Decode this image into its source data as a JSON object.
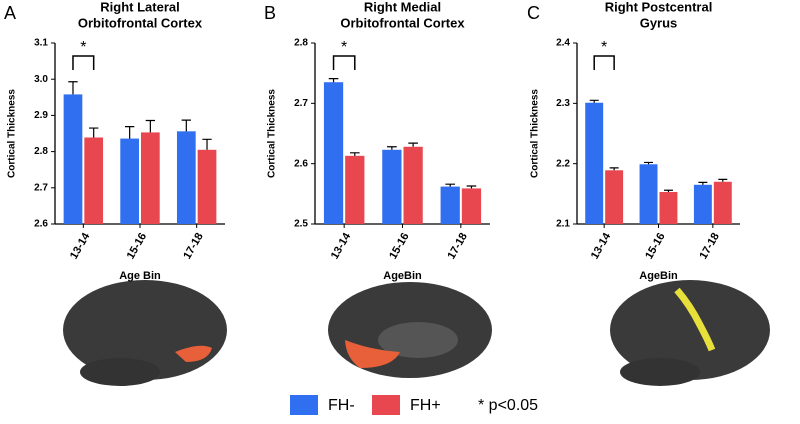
{
  "chart_data": [
    {
      "type": "bar",
      "panel": "A",
      "title": [
        "Right Lateral",
        "Orbitofrontal Cortex"
      ],
      "y_label": "Cortical Thickness",
      "x_label": "Age Bin",
      "categories": [
        "13-14",
        "15-16",
        "17-18"
      ],
      "series": [
        {
          "name": "FH-",
          "color": "#2f6ff0",
          "values": [
            2.958,
            2.836,
            2.856
          ],
          "errors": [
            0.035,
            0.033,
            0.031
          ]
        },
        {
          "name": "FH+",
          "color": "#e8474f",
          "values": [
            2.839,
            2.853,
            2.805
          ],
          "errors": [
            0.026,
            0.033,
            0.029
          ]
        }
      ],
      "ylim": [
        2.6,
        3.1
      ],
      "yticks": [
        2.6,
        2.7,
        2.8,
        2.9,
        {
          "value": 3,
          "label": "3.0"
        },
        3.1
      ],
      "annotation": "*"
    },
    {
      "type": "bar",
      "panel": "B",
      "title": [
        "Right Medial",
        "Orbitofrontal Cortex"
      ],
      "y_label": "Cortical Thickness",
      "x_label": "AgeBin",
      "categories": [
        "13-14",
        "15-16",
        "17-18"
      ],
      "series": [
        {
          "name": "FH-",
          "color": "#2f6ff0",
          "values": [
            2.735,
            2.623,
            2.562
          ],
          "errors": [
            0.006,
            0.005,
            0.004
          ]
        },
        {
          "name": "FH+",
          "color": "#e8474f",
          "values": [
            2.613,
            2.628,
            2.559
          ],
          "errors": [
            0.005,
            0.006,
            0.004
          ]
        }
      ],
      "ylim": [
        2.5,
        2.8
      ],
      "yticks": [
        2.5,
        2.6,
        2.7,
        2.8
      ],
      "annotation": "*"
    },
    {
      "type": "bar",
      "panel": "C",
      "title": [
        "Right Postcentral",
        "Gyrus"
      ],
      "y_label": "Cortical Thickness",
      "x_label": "AgeBin",
      "categories": [
        "13-14",
        "15-16",
        "17-18"
      ],
      "series": [
        {
          "name": "FH-",
          "color": "#2f6ff0",
          "values": [
            2.301,
            2.199,
            2.165
          ],
          "errors": [
            0.004,
            0.003,
            0.004
          ]
        },
        {
          "name": "FH+",
          "color": "#e8474f",
          "values": [
            2.189,
            2.153,
            2.17
          ],
          "errors": [
            0.004,
            0.003,
            0.004
          ]
        }
      ],
      "ylim": [
        2.1,
        2.4
      ],
      "yticks": [
        2.1,
        2.2,
        2.3,
        2.4
      ],
      "annotation": "*"
    }
  ],
  "note": "* p<0.05"
}
